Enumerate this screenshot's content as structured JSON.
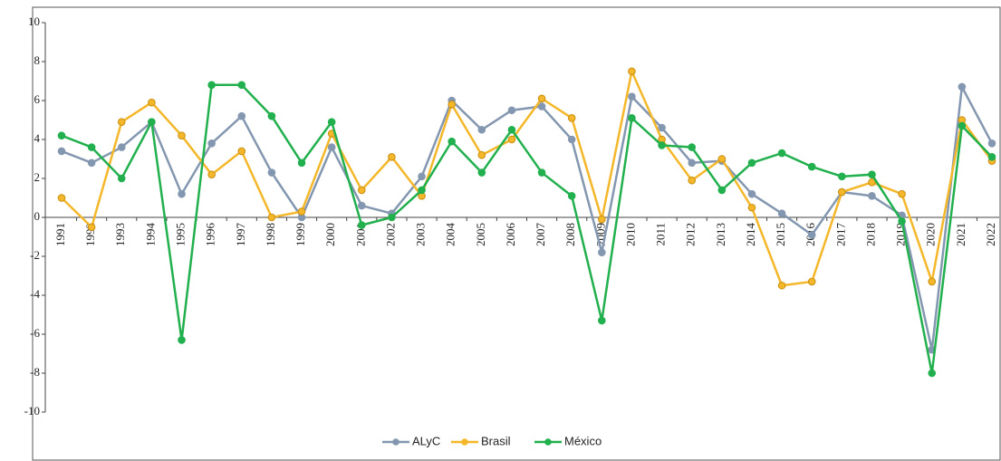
{
  "chart_data": {
    "type": "line",
    "categories": [
      "1991",
      "1992",
      "1993",
      "1994",
      "1995",
      "1996",
      "1997",
      "1998",
      "1999",
      "2000",
      "2001",
      "2002",
      "2003",
      "2004",
      "2005",
      "2006",
      "2007",
      "2008",
      "2009",
      "2010",
      "2011",
      "2012",
      "2013",
      "2014",
      "2015",
      "2016",
      "2017",
      "2018",
      "2019",
      "2020",
      "2021",
      "2022"
    ],
    "series": [
      {
        "name": "ALyC",
        "color": "#8497b0",
        "values": [
          3.4,
          2.8,
          3.6,
          4.9,
          1.2,
          3.8,
          5.2,
          2.3,
          0.0,
          3.6,
          0.6,
          0.2,
          2.1,
          6.0,
          4.5,
          5.5,
          5.7,
          4.0,
          -1.8,
          6.2,
          4.6,
          2.8,
          2.9,
          1.2,
          0.2,
          -0.9,
          1.3,
          1.1,
          0.1,
          -6.8,
          6.7,
          3.8
        ]
      },
      {
        "name": "Brasil",
        "color": "#f4b72a",
        "values": [
          1.0,
          -0.5,
          4.9,
          5.9,
          4.2,
          2.2,
          3.4,
          0.0,
          0.3,
          4.3,
          1.4,
          3.1,
          1.1,
          5.8,
          3.2,
          4.0,
          6.1,
          5.1,
          -0.1,
          7.5,
          4.0,
          1.9,
          3.0,
          0.5,
          -3.5,
          -3.3,
          1.3,
          1.8,
          1.2,
          -3.3,
          5.0,
          2.9
        ]
      },
      {
        "name": "México",
        "color": "#22b04e",
        "values": [
          4.2,
          3.6,
          2.0,
          4.9,
          -6.3,
          6.8,
          6.8,
          5.2,
          2.8,
          4.9,
          -0.4,
          0.0,
          1.4,
          3.9,
          2.3,
          4.5,
          2.3,
          1.1,
          -5.3,
          5.1,
          3.7,
          3.6,
          1.4,
          2.8,
          3.3,
          2.6,
          2.1,
          2.2,
          -0.2,
          -8.0,
          4.7,
          3.1
        ]
      }
    ],
    "ylim": [
      -10,
      10
    ],
    "yticks": [
      -10,
      -8,
      -6,
      -4,
      -2,
      0,
      2,
      4,
      6,
      8,
      10
    ],
    "grid": false,
    "legend": "bottom"
  }
}
